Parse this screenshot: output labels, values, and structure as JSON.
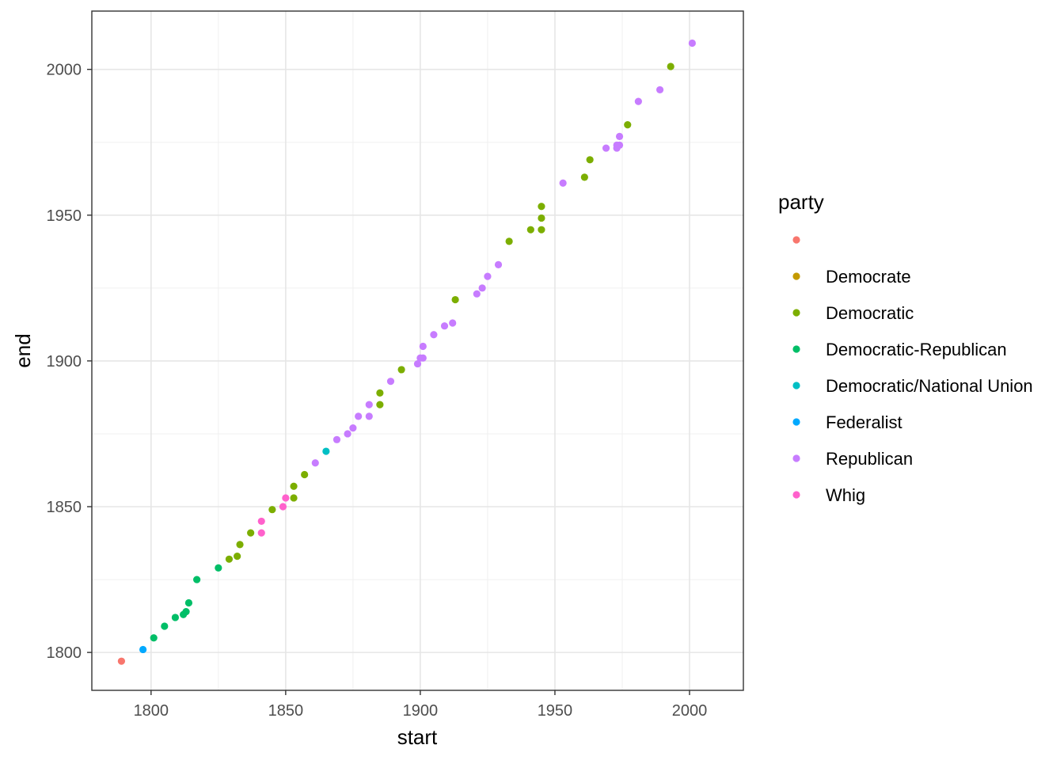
{
  "chart_data": {
    "type": "scatter",
    "xlabel": "start",
    "ylabel": "end",
    "xlim": [
      1778,
      2020
    ],
    "ylim": [
      1787,
      2020
    ],
    "xticks": [
      1800,
      1850,
      1900,
      1950,
      2000
    ],
    "yticks": [
      1800,
      1850,
      1900,
      1950,
      2000
    ],
    "grid": true,
    "legend": {
      "title": "party",
      "position": "right",
      "entries": [
        {
          "label": "",
          "color": "#F8766D"
        },
        {
          "label": "Democrate",
          "color": "#C49A00"
        },
        {
          "label": "Democratic",
          "color": "#7CAE00"
        },
        {
          "label": "Democratic-Republican",
          "color": "#00BE67"
        },
        {
          "label": "Democratic/National Union",
          "color": "#00BFC4"
        },
        {
          "label": "Federalist",
          "color": "#00A9FF"
        },
        {
          "label": "Republican",
          "color": "#C77CFF"
        },
        {
          "label": "Whig",
          "color": "#FF61CC"
        }
      ]
    },
    "series": [
      {
        "name": "",
        "points": [
          [
            1789,
            1797
          ]
        ]
      },
      {
        "name": "Democrate",
        "points": []
      },
      {
        "name": "Democratic",
        "points": [
          [
            1829,
            1832
          ],
          [
            1832,
            1833
          ],
          [
            1833,
            1837
          ],
          [
            1837,
            1841
          ],
          [
            1845,
            1849
          ],
          [
            1853,
            1853
          ],
          [
            1853,
            1857
          ],
          [
            1857,
            1861
          ],
          [
            1885,
            1885
          ],
          [
            1885,
            1889
          ],
          [
            1893,
            1897
          ],
          [
            1913,
            1921
          ],
          [
            1933,
            1941
          ],
          [
            1941,
            1945
          ],
          [
            1945,
            1945
          ],
          [
            1945,
            1949
          ],
          [
            1945,
            1953
          ],
          [
            1961,
            1963
          ],
          [
            1963,
            1969
          ],
          [
            1977,
            1981
          ],
          [
            1993,
            2001
          ]
        ]
      },
      {
        "name": "Democratic-Republican",
        "points": [
          [
            1801,
            1805
          ],
          [
            1805,
            1809
          ],
          [
            1809,
            1812
          ],
          [
            1812,
            1813
          ],
          [
            1813,
            1814
          ],
          [
            1814,
            1817
          ],
          [
            1817,
            1825
          ],
          [
            1825,
            1829
          ]
        ]
      },
      {
        "name": "Democratic/National Union",
        "points": [
          [
            1865,
            1869
          ]
        ]
      },
      {
        "name": "Federalist",
        "points": [
          [
            1797,
            1801
          ]
        ]
      },
      {
        "name": "Republican",
        "points": [
          [
            1861,
            1865
          ],
          [
            1869,
            1873
          ],
          [
            1873,
            1875
          ],
          [
            1875,
            1877
          ],
          [
            1877,
            1881
          ],
          [
            1881,
            1881
          ],
          [
            1881,
            1885
          ],
          [
            1889,
            1893
          ],
          [
            1899,
            1899
          ],
          [
            1900,
            1901
          ],
          [
            1901,
            1901
          ],
          [
            1901,
            1905
          ],
          [
            1905,
            1909
          ],
          [
            1909,
            1912
          ],
          [
            1912,
            1913
          ],
          [
            1921,
            1923
          ],
          [
            1923,
            1925
          ],
          [
            1925,
            1929
          ],
          [
            1929,
            1933
          ],
          [
            1953,
            1961
          ],
          [
            1969,
            1973
          ],
          [
            1973,
            1973
          ],
          [
            1973,
            1974
          ],
          [
            1974,
            1974
          ],
          [
            1974,
            1977
          ],
          [
            1981,
            1989
          ],
          [
            1989,
            1993
          ],
          [
            2001,
            2009
          ]
        ]
      },
      {
        "name": "Whig",
        "points": [
          [
            1841,
            1841
          ],
          [
            1841,
            1845
          ],
          [
            1849,
            1850
          ],
          [
            1850,
            1853
          ]
        ]
      }
    ]
  }
}
